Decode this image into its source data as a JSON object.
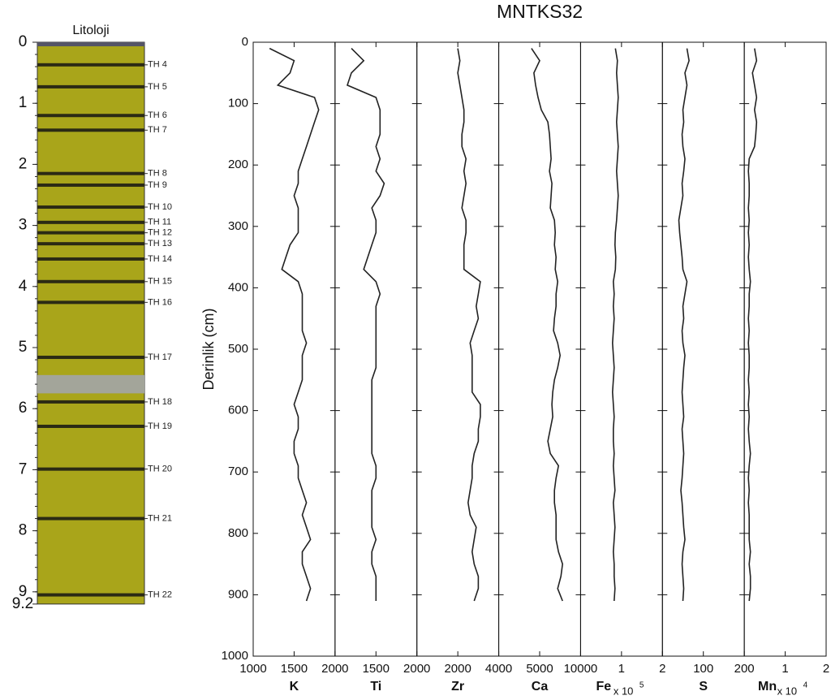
{
  "chart_data": [
    {
      "type": "lithology",
      "title": "Litoloji",
      "color": "#a9a51a",
      "ylim": [
        0,
        9.2
      ],
      "yticks": [
        0,
        1,
        2,
        3,
        4,
        5,
        6,
        7,
        8,
        9,
        9.2
      ],
      "layers": [
        {
          "label": "TH 4",
          "depth": 0.37
        },
        {
          "label": "TH 5",
          "depth": 0.73
        },
        {
          "label": "TH 6",
          "depth": 1.2
        },
        {
          "label": "TH 7",
          "depth": 1.44
        },
        {
          "label": "TH 8",
          "depth": 2.15
        },
        {
          "label": "TH 9",
          "depth": 2.34
        },
        {
          "label": "TH 10",
          "depth": 2.7
        },
        {
          "label": "TH 11",
          "depth": 2.95
        },
        {
          "label": "TH 12",
          "depth": 3.12
        },
        {
          "label": "TH 13",
          "depth": 3.3
        },
        {
          "label": "TH 14",
          "depth": 3.55
        },
        {
          "label": "TH 15",
          "depth": 3.92
        },
        {
          "label": "TH 16",
          "depth": 4.26
        },
        {
          "label": "TH 17",
          "depth": 5.16
        },
        {
          "label": "TH 18",
          "depth": 5.89
        },
        {
          "label": "TH 19",
          "depth": 6.29
        },
        {
          "label": "TH 20",
          "depth": 6.99
        },
        {
          "label": "TH 21",
          "depth": 7.8
        },
        {
          "label": "TH 22",
          "depth": 9.05
        }
      ]
    },
    {
      "type": "line",
      "title": "MNTKS32",
      "y_label": "Derinlik (cm)",
      "ylim": [
        0,
        1000
      ],
      "yticks": [
        0,
        100,
        200,
        300,
        400,
        500,
        600,
        700,
        800,
        900,
        1000
      ],
      "x": [
        10,
        30,
        50,
        70,
        90,
        110,
        130,
        150,
        170,
        190,
        210,
        230,
        250,
        270,
        290,
        310,
        330,
        350,
        370,
        390,
        410,
        430,
        450,
        470,
        490,
        510,
        530,
        550,
        570,
        590,
        610,
        630,
        650,
        670,
        690,
        710,
        730,
        750,
        770,
        790,
        810,
        830,
        850,
        870,
        890,
        910
      ],
      "series": [
        {
          "name": "K",
          "color": "#222222",
          "xlim": [
            1000,
            2000
          ],
          "xticks": [
            1000,
            1500,
            2000
          ],
          "values": [
            1200,
            1500,
            1450,
            1300,
            1750,
            1800,
            1750,
            1700,
            1650,
            1600,
            1550,
            1550,
            1500,
            1550,
            1550,
            1550,
            1450,
            1400,
            1350,
            1550,
            1600,
            1600,
            1600,
            1600,
            1650,
            1600,
            1600,
            1600,
            1550,
            1500,
            1550,
            1550,
            1500,
            1500,
            1550,
            1550,
            1600,
            1650,
            1600,
            1650,
            1700,
            1600,
            1600,
            1650,
            1700,
            1650
          ]
        },
        {
          "name": "Ti",
          "color": "#222222",
          "xlim": [
            1000,
            2000
          ],
          "xticks": [
            1500,
            2000
          ],
          "values": [
            1200,
            1350,
            1200,
            1150,
            1500,
            1550,
            1550,
            1550,
            1500,
            1550,
            1500,
            1600,
            1550,
            1450,
            1500,
            1500,
            1450,
            1400,
            1350,
            1500,
            1550,
            1500,
            1500,
            1500,
            1500,
            1500,
            1500,
            1450,
            1450,
            1450,
            1450,
            1450,
            1450,
            1450,
            1500,
            1500,
            1450,
            1450,
            1450,
            1450,
            1500,
            1450,
            1450,
            1500,
            1500,
            1500
          ]
        },
        {
          "name": "Zr",
          "color": "#222222",
          "xlim": [
            0,
            4000
          ],
          "xticks": [
            2000,
            4000
          ],
          "values": [
            2000,
            2100,
            2000,
            2100,
            2200,
            2300,
            2300,
            2200,
            2200,
            2400,
            2300,
            2400,
            2300,
            2200,
            2400,
            2400,
            2300,
            2300,
            2300,
            3100,
            3000,
            2900,
            3000,
            2800,
            2600,
            2700,
            2700,
            2700,
            2700,
            3100,
            3100,
            3000,
            3000,
            2800,
            2700,
            2700,
            2600,
            2500,
            2600,
            2900,
            2800,
            2700,
            2800,
            3000,
            3000,
            2800
          ]
        },
        {
          "name": "Ca",
          "color": "#222222",
          "xlim": [
            0,
            10000
          ],
          "xticks": [
            5000,
            10000
          ],
          "values": [
            4000,
            5000,
            4300,
            4500,
            4800,
            5200,
            6000,
            6200,
            6300,
            6400,
            6200,
            6500,
            6400,
            6300,
            6800,
            6900,
            6800,
            7000,
            6900,
            7200,
            7000,
            7000,
            6800,
            6700,
            7200,
            7500,
            7200,
            6800,
            6600,
            6500,
            6600,
            6300,
            6000,
            6300,
            7300,
            7000,
            6800,
            6800,
            7000,
            7000,
            7000,
            7300,
            7800,
            7600,
            7200,
            7800
          ]
        },
        {
          "name": "Fe",
          "scale_label": "x 10",
          "scale_exp": "5",
          "color": "#222222",
          "xlim": [
            0,
            2
          ],
          "xticks": [
            1,
            2
          ],
          "values": [
            0.85,
            0.9,
            0.88,
            0.9,
            0.92,
            0.9,
            0.88,
            0.9,
            0.92,
            0.9,
            0.88,
            0.9,
            0.92,
            0.9,
            0.88,
            0.85,
            0.84,
            0.86,
            0.85,
            0.8,
            0.82,
            0.8,
            0.82,
            0.8,
            0.78,
            0.8,
            0.82,
            0.8,
            0.78,
            0.8,
            0.82,
            0.8,
            0.8,
            0.82,
            0.8,
            0.82,
            0.84,
            0.8,
            0.82,
            0.84,
            0.82,
            0.8,
            0.82,
            0.82,
            0.84,
            0.82
          ]
        },
        {
          "name": "S",
          "color": "#222222",
          "xlim": [
            0,
            200
          ],
          "xticks": [
            100,
            200
          ],
          "values": [
            60,
            65,
            55,
            60,
            55,
            50,
            52,
            48,
            50,
            55,
            52,
            48,
            50,
            45,
            40,
            42,
            45,
            48,
            50,
            60,
            55,
            50,
            52,
            48,
            50,
            55,
            52,
            50,
            48,
            50,
            52,
            48,
            50,
            52,
            50,
            48,
            45,
            48,
            50,
            52,
            55,
            50,
            48,
            50,
            52,
            50
          ]
        },
        {
          "name": "Mn",
          "scale_label": "x 10",
          "scale_exp": "4",
          "color": "#222222",
          "xlim": [
            0,
            2
          ],
          "xticks": [
            1,
            2
          ],
          "values": [
            0.25,
            0.3,
            0.2,
            0.25,
            0.3,
            0.25,
            0.3,
            0.28,
            0.25,
            0.12,
            0.1,
            0.12,
            0.12,
            0.1,
            0.12,
            0.1,
            0.12,
            0.1,
            0.12,
            0.15,
            0.12,
            0.12,
            0.1,
            0.12,
            0.1,
            0.12,
            0.12,
            0.1,
            0.12,
            0.1,
            0.12,
            0.1,
            0.12,
            0.15,
            0.12,
            0.1,
            0.12,
            0.1,
            0.12,
            0.12,
            0.12,
            0.15,
            0.12,
            0.15,
            0.15,
            0.12
          ]
        }
      ]
    }
  ]
}
